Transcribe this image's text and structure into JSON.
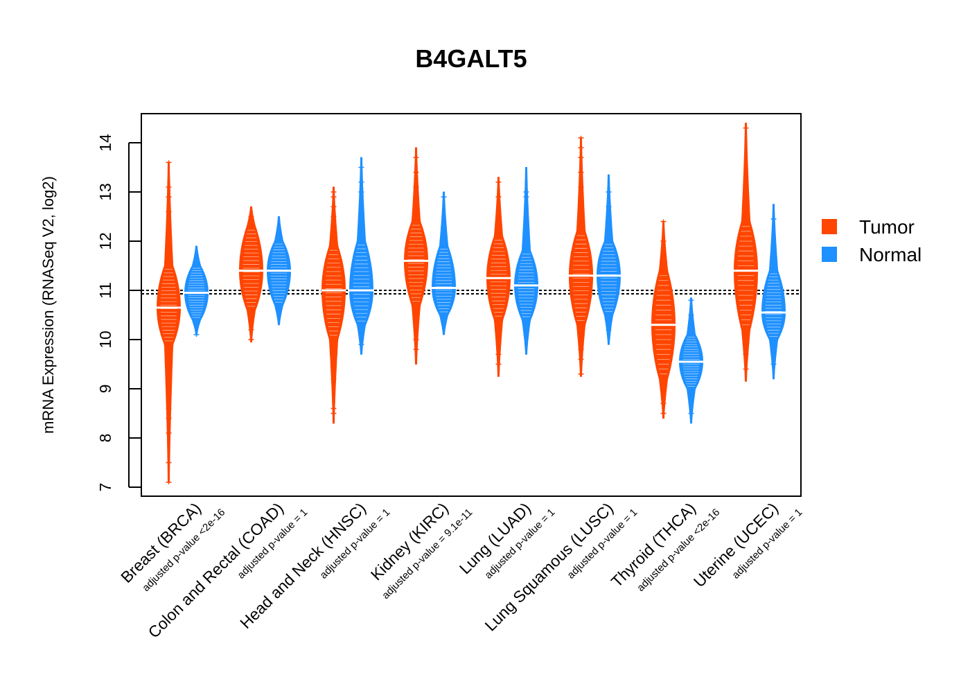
{
  "chart_data": {
    "type": "violin",
    "title": "B4GALT5",
    "ylabel": "mRNA Expression (RNASeq V2, log2)",
    "ylim": [
      6.8,
      14.6
    ],
    "yticks": [
      7,
      8,
      9,
      10,
      11,
      12,
      13,
      14
    ],
    "reference_lines": [
      10.93,
      11.0
    ],
    "colors": {
      "Tumor": "#ff4500",
      "Normal": "#1e90ff"
    },
    "legend": {
      "position": "right",
      "entries": [
        {
          "name": "Tumor",
          "color": "#ff4500"
        },
        {
          "name": "Normal",
          "color": "#1e90ff"
        }
      ]
    },
    "categories": [
      {
        "label": "Breast (BRCA)",
        "pvalue": "adjusted p-value <2e-16",
        "tumor": {
          "median": 10.65,
          "min": 7.1,
          "max": 13.6,
          "q_low": 9.9,
          "q_high": 11.5,
          "outliers": [
            7.1,
            7.5,
            8.1,
            8.4,
            8.6,
            8.8,
            9.0,
            9.2,
            9.4,
            9.6,
            11.8,
            12.1,
            12.3,
            12.6,
            12.9,
            13.1,
            13.6
          ]
        },
        "normal": {
          "median": 10.95,
          "min": 10.1,
          "max": 11.9,
          "q_low": 10.4,
          "q_high": 11.5,
          "outliers": [
            10.1,
            11.6
          ]
        }
      },
      {
        "label": "Colon and Rectal (COAD)",
        "pvalue": "adjusted p-value = 1",
        "tumor": {
          "median": 11.4,
          "min": 9.95,
          "max": 12.7,
          "q_low": 10.6,
          "q_high": 12.3,
          "outliers": [
            10.0,
            10.2,
            12.5
          ]
        },
        "normal": {
          "median": 11.4,
          "min": 10.3,
          "max": 12.5,
          "q_low": 10.7,
          "q_high": 12.0,
          "outliers": [
            12.2
          ]
        }
      },
      {
        "label": "Head and Neck (HNSC)",
        "pvalue": "adjusted p-value = 1",
        "tumor": {
          "median": 11.0,
          "min": 8.3,
          "max": 13.1,
          "q_low": 10.0,
          "q_high": 11.9,
          "outliers": [
            8.5,
            8.6,
            9.2,
            9.4,
            9.6,
            9.8,
            12.1,
            12.3,
            12.5,
            12.7,
            12.9,
            13.0
          ]
        },
        "normal": {
          "median": 11.0,
          "min": 9.7,
          "max": 13.7,
          "q_low": 10.3,
          "q_high": 12.0,
          "outliers": [
            9.9,
            10.2,
            12.6,
            13.0,
            13.2,
            13.5
          ]
        }
      },
      {
        "label": "Kidney (KIRC)",
        "pvalue": "adjusted p-value = 9.1e-11",
        "tumor": {
          "median": 11.6,
          "min": 9.5,
          "max": 13.9,
          "q_low": 10.7,
          "q_high": 12.4,
          "outliers": [
            9.8,
            10.0,
            10.2,
            10.4,
            10.6,
            12.6,
            12.9,
            13.1,
            13.4,
            13.7
          ]
        },
        "normal": {
          "median": 11.05,
          "min": 10.1,
          "max": 13.0,
          "q_low": 10.5,
          "q_high": 11.9,
          "outliers": [
            12.9
          ]
        }
      },
      {
        "label": "Lung (LUAD)",
        "pvalue": "adjusted p-value = 1",
        "tumor": {
          "median": 11.25,
          "min": 9.25,
          "max": 13.3,
          "q_low": 10.4,
          "q_high": 12.1,
          "outliers": [
            9.5,
            9.7,
            9.9,
            10.1,
            12.4,
            12.6,
            12.9,
            13.2
          ]
        },
        "normal": {
          "median": 11.1,
          "min": 9.7,
          "max": 13.5,
          "q_low": 10.4,
          "q_high": 11.8,
          "outliers": [
            10.1,
            12.4,
            12.9,
            13.0
          ]
        }
      },
      {
        "label": "Lung Squamous (LUSC)",
        "pvalue": "adjusted p-value = 1",
        "tumor": {
          "median": 11.3,
          "min": 9.25,
          "max": 14.1,
          "q_low": 10.3,
          "q_high": 12.2,
          "outliers": [
            9.3,
            9.6,
            9.8,
            10.1,
            12.5,
            12.8,
            13.1,
            13.4,
            13.7,
            13.9,
            14.1
          ]
        },
        "normal": {
          "median": 11.3,
          "min": 9.9,
          "max": 13.35,
          "q_low": 10.5,
          "q_high": 12.0,
          "outliers": [
            10.2,
            12.7,
            13.0
          ]
        }
      },
      {
        "label": "Thyroid (THCA)",
        "pvalue": "adjusted p-value <2e-16",
        "tumor": {
          "median": 10.3,
          "min": 8.4,
          "max": 12.4,
          "q_low": 9.2,
          "q_high": 11.4,
          "outliers": [
            8.5,
            8.7,
            8.9,
            9.1,
            11.5,
            11.7,
            12.0,
            12.4
          ]
        },
        "normal": {
          "median": 9.55,
          "min": 8.3,
          "max": 10.85,
          "q_low": 9.0,
          "q_high": 10.1,
          "outliers": [
            8.5,
            8.7,
            10.5,
            10.8
          ]
        }
      },
      {
        "label": "Uterine (UCEC)",
        "pvalue": "adjusted p-value = 1",
        "tumor": {
          "median": 11.4,
          "min": 9.15,
          "max": 14.4,
          "q_low": 10.2,
          "q_high": 12.4,
          "outliers": [
            9.4,
            9.7,
            9.9,
            12.6,
            12.9,
            13.2,
            14.3
          ]
        },
        "normal": {
          "median": 10.55,
          "min": 9.2,
          "max": 12.75,
          "q_low": 10.0,
          "q_high": 11.4,
          "outliers": [
            9.5,
            12.45
          ]
        }
      }
    ]
  }
}
